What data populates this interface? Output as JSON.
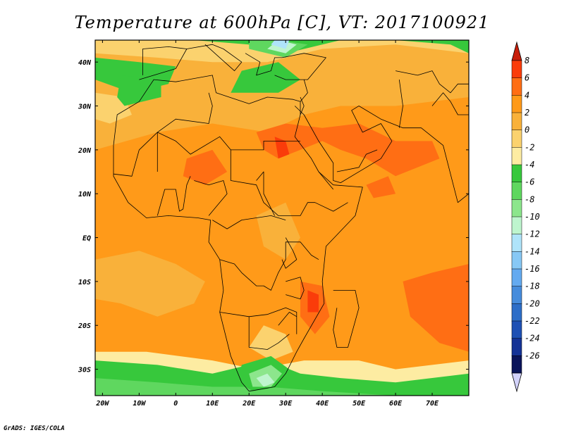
{
  "title": "Temperature at 600hPa [C], VT: 2017100921",
  "credit": "GrADS: IGES/COLA",
  "map": {
    "lon_range": [
      -22,
      80
    ],
    "lat_range": [
      -36,
      45
    ],
    "lon_ticks": [
      {
        "lon": -20,
        "label": "20W"
      },
      {
        "lon": -10,
        "label": "10W"
      },
      {
        "lon": 0,
        "label": "0"
      },
      {
        "lon": 10,
        "label": "10E"
      },
      {
        "lon": 20,
        "label": "20E"
      },
      {
        "lon": 30,
        "label": "30E"
      },
      {
        "lon": 40,
        "label": "40E"
      },
      {
        "lon": 50,
        "label": "50E"
      },
      {
        "lon": 60,
        "label": "60E"
      },
      {
        "lon": 70,
        "label": "70E"
      }
    ],
    "lat_ticks": [
      {
        "lat": 40,
        "label": "40N"
      },
      {
        "lat": 30,
        "label": "30N"
      },
      {
        "lat": 20,
        "label": "20N"
      },
      {
        "lat": 10,
        "label": "10N"
      },
      {
        "lat": 0,
        "label": "EQ"
      },
      {
        "lat": -10,
        "label": "10S"
      },
      {
        "lat": -20,
        "label": "20S"
      },
      {
        "lat": -30,
        "label": "30S"
      }
    ]
  },
  "colorbar": {
    "levels": [
      "8",
      "6",
      "4",
      "2",
      "0",
      "-2",
      "-4",
      "-6",
      "-8",
      "-10",
      "-12",
      "-14",
      "-16",
      "-18",
      "-20",
      "-22",
      "-24",
      "-26"
    ],
    "colors": [
      "#fa3c0a",
      "#ff6e14",
      "#ff9a19",
      "#f9b13a",
      "#fbd26e",
      "#fdeca2",
      "#37c83c",
      "#5fd75f",
      "#8ce68c",
      "#bef5ce",
      "#afe4fa",
      "#87c8f5",
      "#64aaf0",
      "#468cdc",
      "#2d6ec8",
      "#1e50b4",
      "#143296",
      "#0a145a"
    ],
    "top_arrow_color": "#c81e0a",
    "bottom_arrow_color": "#d2d2fa"
  },
  "field_colors": {
    "t_m6": "#37c83c",
    "t_m8": "#5fd75f",
    "t_m10": "#8ce68c",
    "t_m12": "#bef5ce",
    "t_m14": "#afe4fa",
    "t_m4": "#fdeca2",
    "t_m2": "#fbd26e",
    "t_0": "#f9b13a",
    "t_2": "#ff9a19",
    "t_4": "#ff6e14",
    "t_6": "#fa3c0a"
  }
}
